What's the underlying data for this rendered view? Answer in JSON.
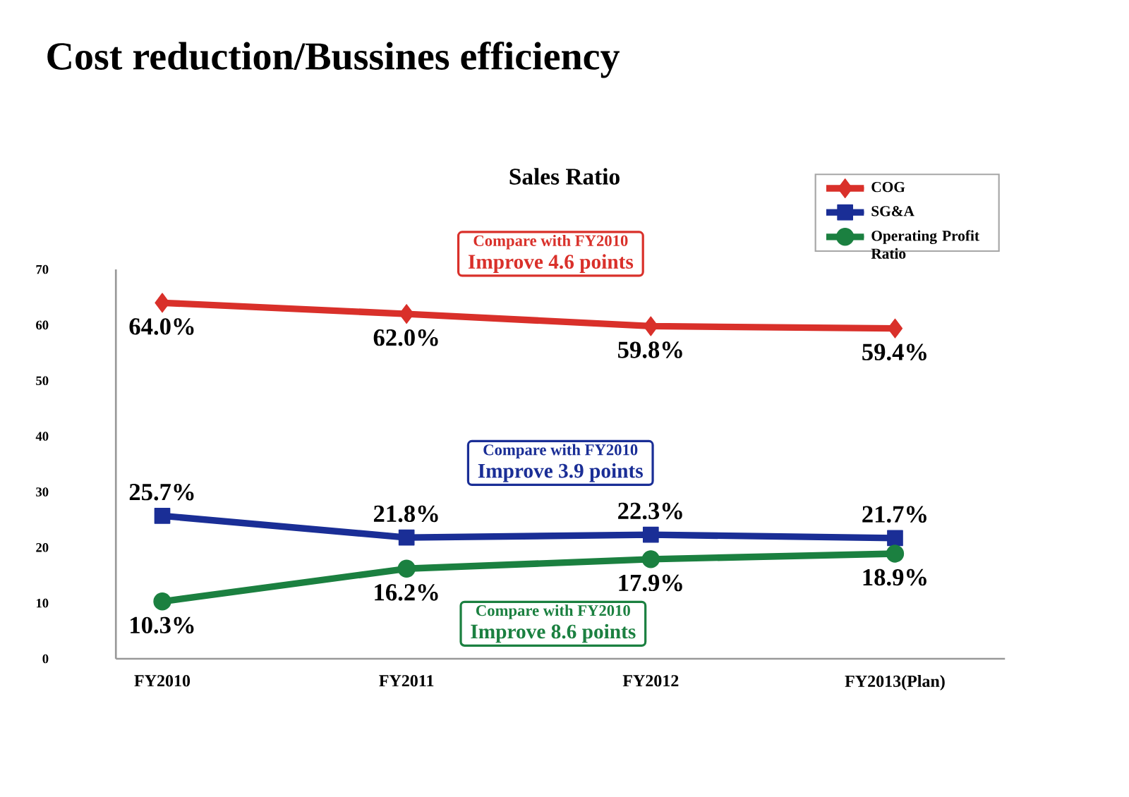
{
  "chart_data": {
    "type": "line",
    "title": "Cost reduction/Bussines efficiency",
    "subtitle": "Sales Ratio",
    "categories": [
      "FY2010",
      "FY2011",
      "FY2012",
      "FY2013(Plan)"
    ],
    "series": [
      {
        "name": "COG",
        "color": "#d9302a",
        "marker": "diamond",
        "values": [
          64.0,
          62.0,
          59.8,
          59.4
        ],
        "value_labels": [
          "64.0%",
          "62.0%",
          "59.8%",
          "59.4%"
        ]
      },
      {
        "name": "SG&A",
        "color": "#1a2e96",
        "marker": "square",
        "values": [
          25.7,
          21.8,
          22.3,
          21.7
        ],
        "value_labels": [
          "25.7%",
          "21.8%",
          "22.3%",
          "21.7%"
        ]
      },
      {
        "name": "Operating Profit Ratio",
        "color": "#1b8040",
        "marker": "circle",
        "values": [
          10.3,
          16.2,
          17.9,
          18.9
        ],
        "value_labels": [
          "10.3%",
          "16.2%",
          "17.9%",
          "18.9%"
        ]
      }
    ],
    "annotations": [
      "Compare with FY2010",
      "Improve 4.6 points",
      "Compare with FY2010",
      "Improve 3.9 points",
      "Compare with FY2010",
      "Improve 8.6 points"
    ],
    "ylim": [
      0,
      70
    ],
    "yticks": [
      0,
      10,
      20,
      30,
      40,
      50,
      60,
      70
    ],
    "legend": "top right",
    "grid": false
  }
}
